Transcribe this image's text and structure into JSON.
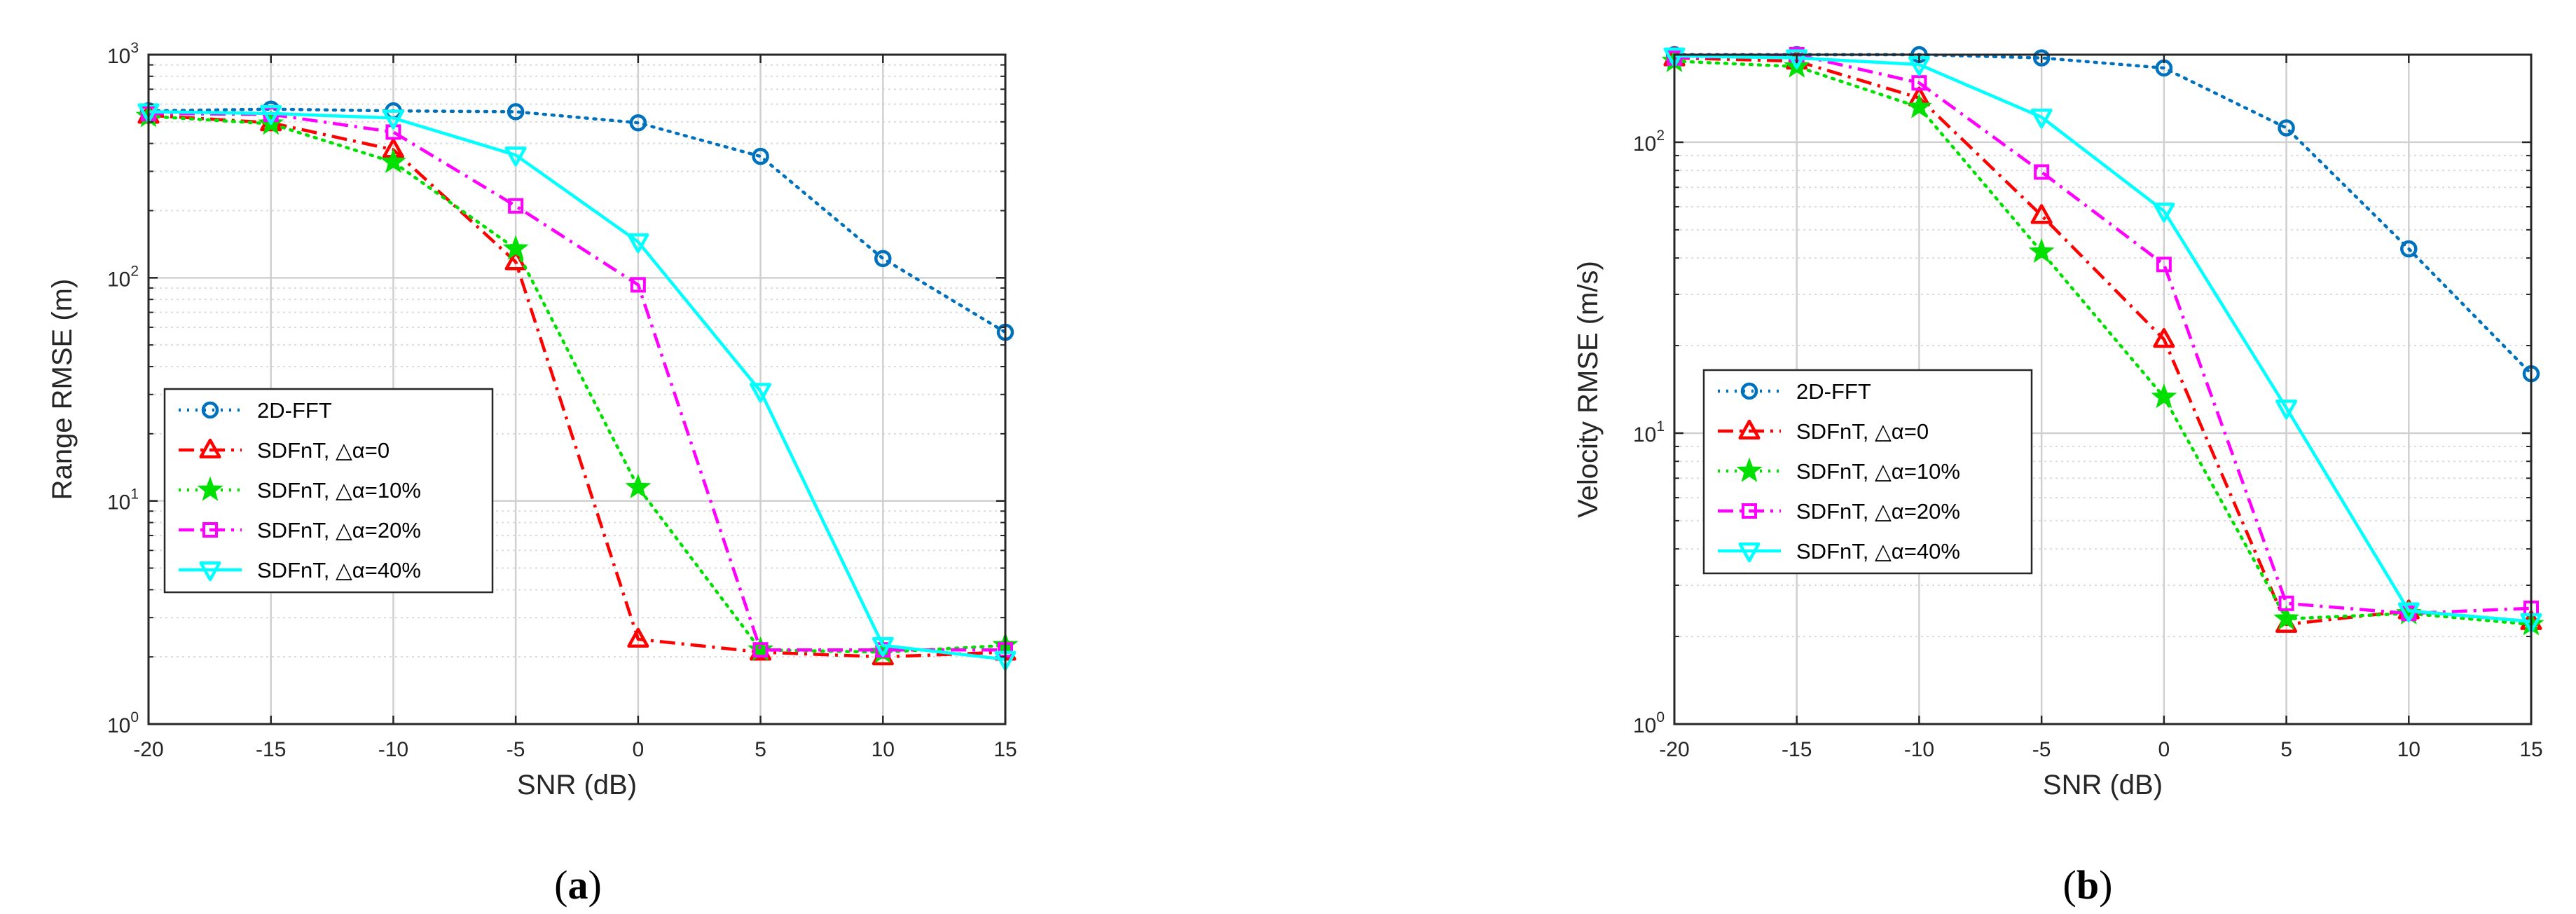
{
  "chart_data": [
    {
      "type": "line",
      "caption_letter": "a",
      "xlabel": "SNR (dB)",
      "ylabel": "Range RMSE (m)",
      "yscale": "log",
      "xlim": [
        -20,
        15
      ],
      "ylim": [
        1,
        1000
      ],
      "x_ticks": [
        "-20",
        "-15",
        "-10",
        "-5",
        "0",
        "5",
        "10",
        "15"
      ],
      "y_ticks": [
        {
          "base": "10",
          "exp": "0"
        },
        {
          "base": "10",
          "exp": "1"
        },
        {
          "base": "10",
          "exp": "2"
        },
        {
          "base": "10",
          "exp": "3"
        }
      ],
      "grid": true,
      "legend_position": "center-left",
      "x": [
        -20,
        -15,
        -10,
        -5,
        0,
        5,
        10,
        15
      ],
      "series": [
        {
          "name": "2D-FFT",
          "color": "#0072BD",
          "dash": "dotted",
          "marker": "circle",
          "values": [
            560,
            570,
            560,
            555,
            495,
            350,
            122,
            57
          ]
        },
        {
          "name": "SDFnT, △α=0",
          "color": "#FF0000",
          "dash": "dashdot",
          "marker": "triangle-up",
          "values": [
            535,
            495,
            375,
            118,
            2.4,
            2.1,
            2.0,
            2.1
          ]
        },
        {
          "name": "SDFnT, △α=10%",
          "color": "#00E000",
          "dash": "dotted",
          "marker": "star",
          "values": [
            530,
            490,
            330,
            135,
            11.5,
            2.15,
            2.1,
            2.25
          ]
        },
        {
          "name": "SDFnT, △α=20%",
          "color": "#FF00FF",
          "dash": "dashdot",
          "marker": "square",
          "values": [
            545,
            540,
            450,
            210,
            93,
            2.15,
            2.15,
            2.15
          ]
        },
        {
          "name": "SDFnT, △α=40%",
          "color": "#00FFFF",
          "dash": "solid",
          "marker": "triangle-down",
          "values": [
            555,
            545,
            520,
            355,
            145,
            31,
            2.25,
            1.95
          ]
        }
      ]
    },
    {
      "type": "line",
      "caption_letter": "b",
      "xlabel": "SNR (dB)",
      "ylabel": "Velocity RMSE (m/s)",
      "yscale": "log",
      "xlim": [
        -20,
        15
      ],
      "ylim": [
        1,
        200
      ],
      "x_ticks": [
        "-20",
        "-15",
        "-10",
        "-5",
        "0",
        "5",
        "10",
        "15"
      ],
      "y_ticks": [
        {
          "base": "10",
          "exp": "0"
        },
        {
          "base": "10",
          "exp": "1"
        },
        {
          "base": "10",
          "exp": "2"
        }
      ],
      "grid": true,
      "legend_position": "center-left",
      "x": [
        -20,
        -15,
        -10,
        -5,
        0,
        5,
        10,
        15
      ],
      "series": [
        {
          "name": "2D-FFT",
          "color": "#0072BD",
          "dash": "dotted",
          "marker": "circle",
          "values": [
            200,
            200,
            200,
            195,
            180,
            112,
            43,
            16
          ]
        },
        {
          "name": "SDFnT, △α=0",
          "color": "#FF0000",
          "dash": "dashdot",
          "marker": "triangle-up",
          "values": [
            195,
            190,
            142,
            56,
            21,
            2.2,
            2.45,
            2.25
          ]
        },
        {
          "name": "SDFnT, △α=10%",
          "color": "#00E000",
          "dash": "dotted",
          "marker": "star",
          "values": [
            190,
            182,
            132,
            42,
            13.3,
            2.3,
            2.4,
            2.2
          ]
        },
        {
          "name": "SDFnT, △α=20%",
          "color": "#FF00FF",
          "dash": "dashdot",
          "marker": "square",
          "values": [
            195,
            200,
            160,
            79,
            38,
            2.6,
            2.4,
            2.5
          ]
        },
        {
          "name": "SDFnT, △α=40%",
          "color": "#00FFFF",
          "dash": "solid",
          "marker": "triangle-down",
          "values": [
            198,
            195,
            185,
            122,
            58,
            12.2,
            2.45,
            2.25
          ]
        }
      ]
    }
  ]
}
